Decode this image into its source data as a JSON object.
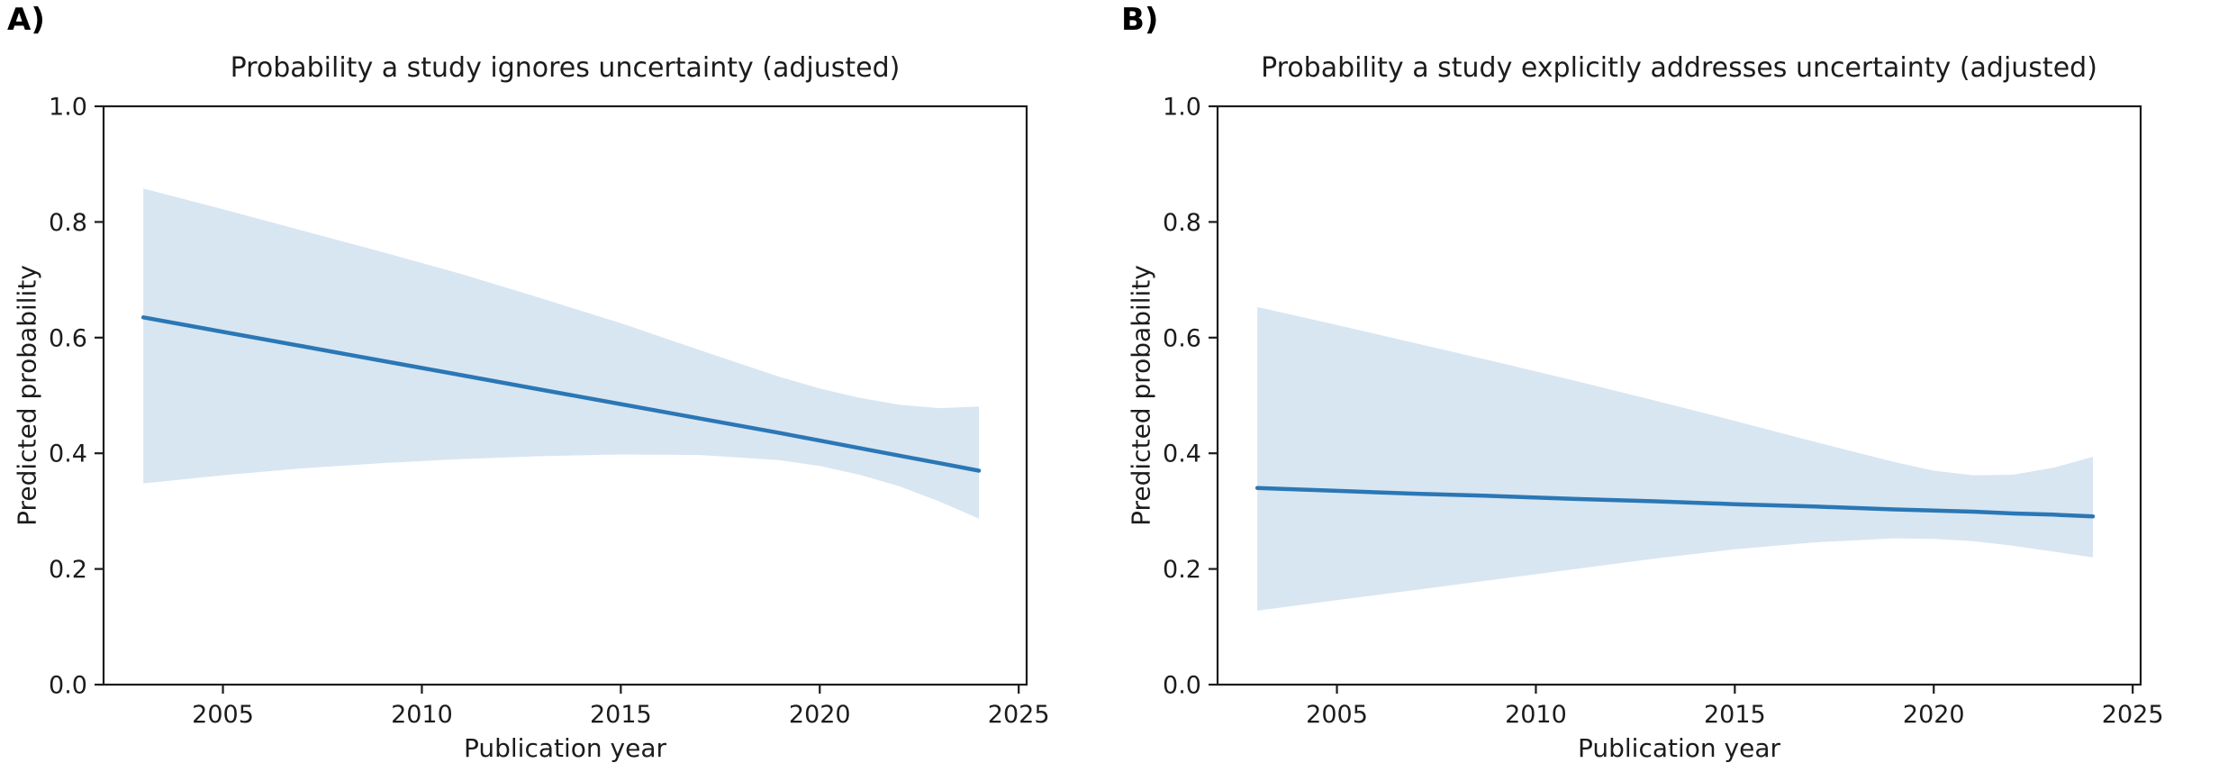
{
  "colors": {
    "line": "#2b77b5",
    "band": "#d8e6f2",
    "axis": "#1c1c1c",
    "text": "#1c1c1c",
    "background": "#ffffff"
  },
  "chart_data": [
    {
      "type": "line",
      "panel_label": "A)",
      "title": "Probability a study ignores uncertainty (adjusted)",
      "xlabel": "Publication year",
      "ylabel": "Predicted probability",
      "xlim": [
        2002,
        2025.2
      ],
      "ylim": [
        0.0,
        1.0
      ],
      "xtick_values": [
        2005,
        2010,
        2015,
        2020,
        2025
      ],
      "xtick_labels": [
        "2005",
        "2010",
        "2015",
        "2020",
        "2025"
      ],
      "ytick_values": [
        0.0,
        0.2,
        0.4,
        0.6,
        0.8,
        1.0
      ],
      "ytick_labels": [
        "0.0",
        "0.2",
        "0.4",
        "0.6",
        "0.8",
        "1.0"
      ],
      "x": [
        2003,
        2005,
        2007,
        2009,
        2011,
        2013,
        2015,
        2017,
        2019,
        2020,
        2021,
        2022,
        2023,
        2024
      ],
      "line": [
        0.635,
        0.61,
        0.585,
        0.56,
        0.535,
        0.51,
        0.485,
        0.46,
        0.435,
        0.422,
        0.409,
        0.396,
        0.383,
        0.37
      ],
      "ci_upper": [
        0.858,
        0.822,
        0.785,
        0.748,
        0.71,
        0.668,
        0.625,
        0.578,
        0.532,
        0.512,
        0.496,
        0.484,
        0.478,
        0.481
      ],
      "ci_lower": [
        0.348,
        0.362,
        0.374,
        0.383,
        0.39,
        0.395,
        0.398,
        0.397,
        0.388,
        0.378,
        0.363,
        0.343,
        0.317,
        0.287
      ],
      "legend": null,
      "grid": false
    },
    {
      "type": "line",
      "panel_label": "B)",
      "title": "Probability a study explicitly addresses uncertainty (adjusted)",
      "xlabel": "Publication year",
      "ylabel": "Predicted probability",
      "xlim": [
        2002,
        2025.2
      ],
      "ylim": [
        0.0,
        1.0
      ],
      "xtick_values": [
        2005,
        2010,
        2015,
        2020,
        2025
      ],
      "xtick_labels": [
        "2005",
        "2010",
        "2015",
        "2020",
        "2025"
      ],
      "ytick_values": [
        0.0,
        0.2,
        0.4,
        0.6,
        0.8,
        1.0
      ],
      "ytick_labels": [
        "0.0",
        "0.2",
        "0.4",
        "0.6",
        "0.8",
        "1.0"
      ],
      "x": [
        2003,
        2005,
        2007,
        2009,
        2011,
        2013,
        2015,
        2017,
        2019,
        2020,
        2021,
        2022,
        2023,
        2024
      ],
      "line": [
        0.34,
        0.335,
        0.33,
        0.326,
        0.321,
        0.317,
        0.312,
        0.308,
        0.303,
        0.301,
        0.299,
        0.296,
        0.294,
        0.291
      ],
      "ci_upper": [
        0.653,
        0.622,
        0.59,
        0.558,
        0.525,
        0.491,
        0.456,
        0.42,
        0.385,
        0.37,
        0.362,
        0.363,
        0.375,
        0.394
      ],
      "ci_lower": [
        0.128,
        0.146,
        0.164,
        0.182,
        0.2,
        0.218,
        0.234,
        0.246,
        0.253,
        0.252,
        0.248,
        0.24,
        0.23,
        0.22
      ],
      "legend": null,
      "grid": false
    }
  ]
}
